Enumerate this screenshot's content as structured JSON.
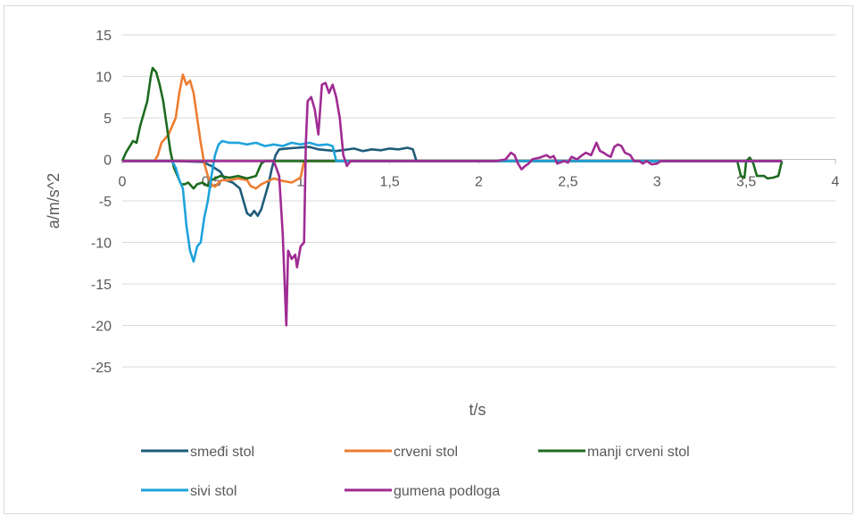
{
  "chart_data": {
    "type": "line",
    "title": "",
    "xlabel": "t/s",
    "ylabel": "a/m/s^2",
    "xlim": [
      0,
      4
    ],
    "ylim": [
      -25,
      15
    ],
    "x_ticks": [
      0,
      0.5,
      1,
      1.5,
      2,
      2.5,
      3,
      3.5,
      4
    ],
    "x_tick_labels": [
      "0",
      "0,5",
      "1",
      "1,5",
      "2",
      "2,5",
      "3",
      "3,5",
      "4"
    ],
    "y_ticks": [
      15,
      10,
      5,
      0,
      -5,
      -10,
      -15,
      -20,
      -25
    ],
    "y_tick_labels": [
      "15",
      "10",
      "5",
      "0",
      "-5",
      "-10",
      "-15",
      "-20",
      "-25"
    ],
    "grid": "horizontal",
    "legend_position": "bottom",
    "series": [
      {
        "name": "smeđi stol",
        "color": "#1f5c7a",
        "points": [
          [
            0,
            -0.2
          ],
          [
            0.3,
            -0.2
          ],
          [
            0.45,
            -0.3
          ],
          [
            0.5,
            -0.8
          ],
          [
            0.55,
            -1.5
          ],
          [
            0.58,
            -2.5
          ],
          [
            0.62,
            -2.8
          ],
          [
            0.66,
            -3.5
          ],
          [
            0.68,
            -5
          ],
          [
            0.7,
            -6.5
          ],
          [
            0.72,
            -6.8
          ],
          [
            0.74,
            -6.2
          ],
          [
            0.76,
            -6.8
          ],
          [
            0.78,
            -6
          ],
          [
            0.8,
            -4.5
          ],
          [
            0.82,
            -3
          ],
          [
            0.84,
            -1
          ],
          [
            0.86,
            0.5
          ],
          [
            0.88,
            1.2
          ],
          [
            0.92,
            1.3
          ],
          [
            0.98,
            1.4
          ],
          [
            1.05,
            1.5
          ],
          [
            1.1,
            1.2
          ],
          [
            1.2,
            1
          ],
          [
            1.3,
            1.3
          ],
          [
            1.35,
            1
          ],
          [
            1.4,
            1.2
          ],
          [
            1.45,
            1.1
          ],
          [
            1.5,
            1.3
          ],
          [
            1.55,
            1.2
          ],
          [
            1.6,
            1.4
          ],
          [
            1.63,
            1.2
          ],
          [
            1.65,
            -0.2
          ],
          [
            1.7,
            -0.2
          ],
          [
            2,
            -0.2
          ],
          [
            3.7,
            -0.2
          ]
        ]
      },
      {
        "name": "crveni stol",
        "color": "#ed7d31",
        "points": [
          [
            0,
            -0.2
          ],
          [
            0.18,
            -0.2
          ],
          [
            0.2,
            0.5
          ],
          [
            0.22,
            2
          ],
          [
            0.24,
            2.5
          ],
          [
            0.26,
            3
          ],
          [
            0.28,
            4
          ],
          [
            0.3,
            5
          ],
          [
            0.32,
            8
          ],
          [
            0.34,
            10.2
          ],
          [
            0.36,
            9
          ],
          [
            0.38,
            9.5
          ],
          [
            0.4,
            8
          ],
          [
            0.42,
            5
          ],
          [
            0.44,
            2
          ],
          [
            0.46,
            -0.5
          ],
          [
            0.48,
            -2
          ],
          [
            0.5,
            -3
          ],
          [
            0.52,
            -3.3
          ],
          [
            0.54,
            -2.8
          ],
          [
            0.56,
            -2.5
          ],
          [
            0.6,
            -2.5
          ],
          [
            0.65,
            -2.3
          ],
          [
            0.7,
            -2.5
          ],
          [
            0.72,
            -3.2
          ],
          [
            0.75,
            -3.5
          ],
          [
            0.78,
            -3
          ],
          [
            0.8,
            -2.8
          ],
          [
            0.85,
            -2.3
          ],
          [
            0.9,
            -2.6
          ],
          [
            0.95,
            -2.8
          ],
          [
            1,
            -2.2
          ],
          [
            1.02,
            -0.2
          ],
          [
            1.1,
            -0.2
          ],
          [
            3.7,
            -0.2
          ]
        ]
      },
      {
        "name": "manji crveni stol",
        "color": "#1e6b20",
        "points": [
          [
            0,
            -0.2
          ],
          [
            0.02,
            0.8
          ],
          [
            0.04,
            1.5
          ],
          [
            0.06,
            2.2
          ],
          [
            0.08,
            2
          ],
          [
            0.1,
            4
          ],
          [
            0.12,
            5.5
          ],
          [
            0.14,
            7
          ],
          [
            0.16,
            10
          ],
          [
            0.17,
            11
          ],
          [
            0.19,
            10.5
          ],
          [
            0.21,
            9
          ],
          [
            0.23,
            7
          ],
          [
            0.25,
            4
          ],
          [
            0.27,
            1
          ],
          [
            0.29,
            -1
          ],
          [
            0.31,
            -2
          ],
          [
            0.33,
            -3
          ],
          [
            0.35,
            -3
          ],
          [
            0.37,
            -2.8
          ],
          [
            0.4,
            -3.5
          ],
          [
            0.42,
            -3
          ],
          [
            0.45,
            -2.8
          ],
          [
            0.48,
            -3.2
          ],
          [
            0.5,
            -2.5
          ],
          [
            0.55,
            -2
          ],
          [
            0.6,
            -2.2
          ],
          [
            0.65,
            -2
          ],
          [
            0.7,
            -2.3
          ],
          [
            0.75,
            -2
          ],
          [
            0.78,
            -0.5
          ],
          [
            0.8,
            -0.2
          ],
          [
            1.2,
            -0.2
          ],
          [
            3.45,
            -0.2
          ],
          [
            3.47,
            -2
          ],
          [
            3.49,
            -2.2
          ],
          [
            3.5,
            -0.2
          ],
          [
            3.52,
            0.2
          ],
          [
            3.54,
            -0.5
          ],
          [
            3.56,
            -2
          ],
          [
            3.6,
            -2
          ],
          [
            3.62,
            -2.3
          ],
          [
            3.65,
            -2.2
          ],
          [
            3.68,
            -2
          ],
          [
            3.7,
            -0.2
          ]
        ]
      },
      {
        "name": "sivi stol",
        "color": "#1fa3dc",
        "points": [
          [
            0,
            -0.2
          ],
          [
            0.2,
            -0.2
          ],
          [
            0.28,
            -0.2
          ],
          [
            0.3,
            -1
          ],
          [
            0.32,
            -2.5
          ],
          [
            0.34,
            -3.5
          ],
          [
            0.36,
            -8
          ],
          [
            0.38,
            -11
          ],
          [
            0.4,
            -12.3
          ],
          [
            0.42,
            -10.5
          ],
          [
            0.44,
            -10
          ],
          [
            0.46,
            -7
          ],
          [
            0.48,
            -5
          ],
          [
            0.5,
            -2
          ],
          [
            0.52,
            0.5
          ],
          [
            0.54,
            1.8
          ],
          [
            0.56,
            2.2
          ],
          [
            0.6,
            2
          ],
          [
            0.65,
            2
          ],
          [
            0.7,
            1.8
          ],
          [
            0.75,
            2
          ],
          [
            0.8,
            1.6
          ],
          [
            0.85,
            1.8
          ],
          [
            0.9,
            1.6
          ],
          [
            0.95,
            2
          ],
          [
            1,
            1.8
          ],
          [
            1.05,
            2
          ],
          [
            1.1,
            1.7
          ],
          [
            1.15,
            1.8
          ],
          [
            1.18,
            1.6
          ],
          [
            1.2,
            -0.2
          ],
          [
            1.3,
            -0.2
          ],
          [
            3.7,
            -0.2
          ]
        ]
      },
      {
        "name": "gumena podloga",
        "color": "#a02b93",
        "points": [
          [
            0,
            -0.2
          ],
          [
            0.85,
            -0.2
          ],
          [
            0.88,
            -2
          ],
          [
            0.9,
            -9
          ],
          [
            0.92,
            -20
          ],
          [
            0.93,
            -11
          ],
          [
            0.95,
            -12
          ],
          [
            0.97,
            -11.5
          ],
          [
            0.98,
            -13
          ],
          [
            1,
            -10.5
          ],
          [
            1.02,
            -10
          ],
          [
            1.03,
            2
          ],
          [
            1.04,
            7
          ],
          [
            1.06,
            7.5
          ],
          [
            1.08,
            6
          ],
          [
            1.1,
            3
          ],
          [
            1.12,
            9
          ],
          [
            1.14,
            9.2
          ],
          [
            1.16,
            8
          ],
          [
            1.18,
            9
          ],
          [
            1.2,
            7.5
          ],
          [
            1.22,
            5
          ],
          [
            1.24,
            0.5
          ],
          [
            1.26,
            -0.8
          ],
          [
            1.28,
            -0.2
          ],
          [
            1.3,
            -0.2
          ],
          [
            2,
            -0.2
          ],
          [
            2.1,
            -0.2
          ],
          [
            2.15,
            0
          ],
          [
            2.18,
            0.8
          ],
          [
            2.2,
            0.5
          ],
          [
            2.22,
            -0.5
          ],
          [
            2.24,
            -1.2
          ],
          [
            2.26,
            -0.8
          ],
          [
            2.28,
            -0.5
          ],
          [
            2.3,
            0
          ],
          [
            2.34,
            0.2
          ],
          [
            2.38,
            0.5
          ],
          [
            2.4,
            0.2
          ],
          [
            2.42,
            0.4
          ],
          [
            2.44,
            -0.5
          ],
          [
            2.48,
            -0.2
          ],
          [
            2.5,
            -0.4
          ],
          [
            2.52,
            0.3
          ],
          [
            2.55,
            0
          ],
          [
            2.58,
            0.5
          ],
          [
            2.6,
            0.8
          ],
          [
            2.63,
            0.5
          ],
          [
            2.66,
            2
          ],
          [
            2.68,
            1
          ],
          [
            2.7,
            0.8
          ],
          [
            2.72,
            0.5
          ],
          [
            2.74,
            0.3
          ],
          [
            2.76,
            1.5
          ],
          [
            2.78,
            1.8
          ],
          [
            2.8,
            1.6
          ],
          [
            2.82,
            0.8
          ],
          [
            2.85,
            0.5
          ],
          [
            2.87,
            -0.2
          ],
          [
            2.9,
            -0.2
          ],
          [
            2.92,
            -0.5
          ],
          [
            2.94,
            -0.2
          ],
          [
            2.97,
            -0.6
          ],
          [
            3,
            -0.5
          ],
          [
            3.02,
            -0.2
          ],
          [
            3.7,
            -0.2
          ]
        ]
      }
    ]
  }
}
